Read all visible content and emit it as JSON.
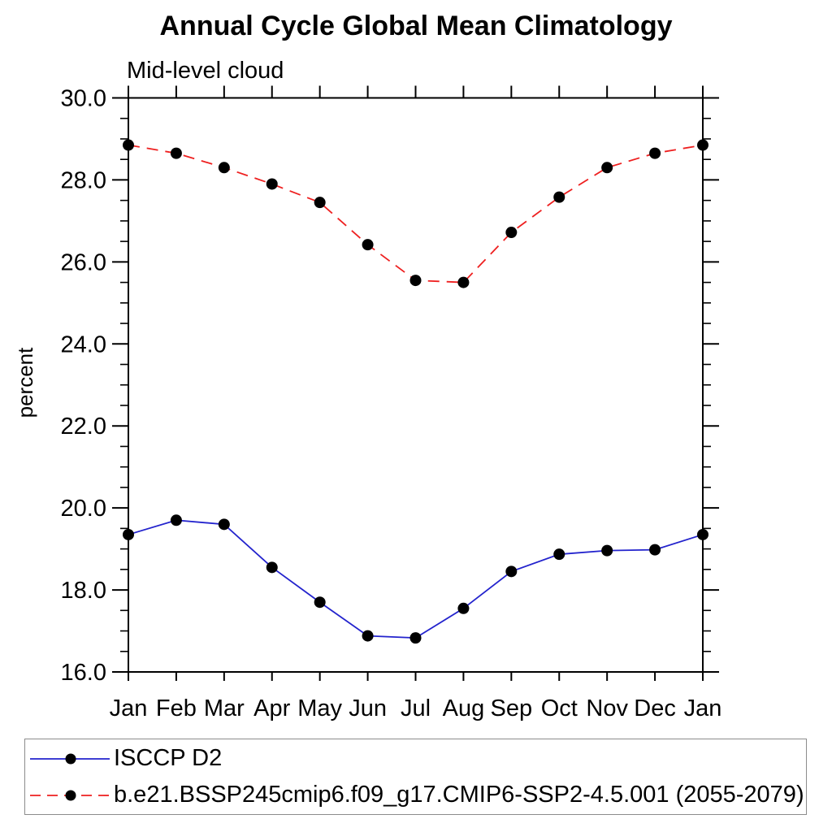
{
  "page": {
    "background": "#ffffff"
  },
  "chart_data": {
    "type": "line",
    "title": "Annual Cycle Global Mean Climatology",
    "subtitle": "Mid-level cloud",
    "ylabel": "percent",
    "xlabel": "",
    "categories": [
      "Jan",
      "Feb",
      "Mar",
      "Apr",
      "May",
      "Jun",
      "Jul",
      "Aug",
      "Sep",
      "Oct",
      "Nov",
      "Dec",
      "Jan"
    ],
    "ylim": [
      16.0,
      30.0
    ],
    "ytick_major_interval": 2.0,
    "ytick_minor_interval": 0.5,
    "ytick_labels": [
      "16.0",
      "18.0",
      "20.0",
      "22.0",
      "24.0",
      "26.0",
      "28.0",
      "30.0"
    ],
    "grid": false,
    "frame_color": "#000000",
    "marker": "filled-circle",
    "marker_color": "#000000",
    "legend_position": "bottom-left",
    "series": [
      {
        "name": "ISCCP D2",
        "color": "#2323cd",
        "line_style": "solid",
        "values": [
          19.35,
          19.7,
          19.6,
          18.55,
          17.7,
          16.88,
          16.83,
          17.55,
          18.45,
          18.87,
          18.96,
          18.98,
          19.35
        ]
      },
      {
        "name": "b.e21.BSSP245cmip6.f09_g17.CMIP6-SSP2-4.5.001 (2055-2079)",
        "color": "#ee2020",
        "line_style": "dashed",
        "values": [
          28.85,
          28.65,
          28.3,
          27.9,
          27.45,
          26.42,
          25.55,
          25.5,
          26.72,
          27.58,
          28.3,
          28.65,
          28.85
        ]
      }
    ]
  }
}
